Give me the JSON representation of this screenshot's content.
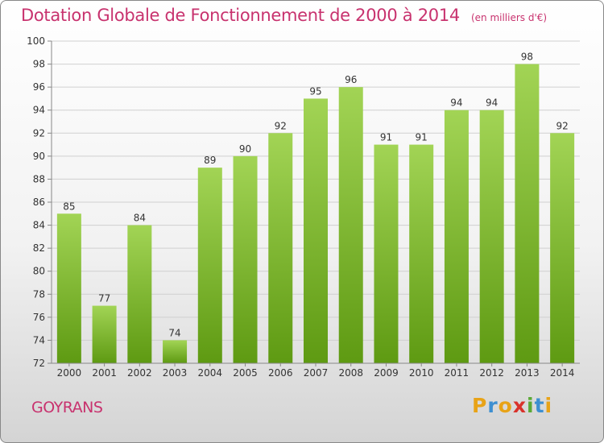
{
  "header": {
    "title": "Dotation Globale de Fonctionnement de 2000 à 2014",
    "unit": "(en milliers d'€)"
  },
  "footer": {
    "commune": "GOYRANS",
    "logo": "Proxiti"
  },
  "colors": {
    "title": "#c8326e",
    "bar_light": "#9fd24c",
    "bar_dark": "#5e9a12",
    "logo_orange": "#e8a317",
    "logo_blue": "#3d8fd1",
    "logo_red": "#d9322b",
    "logo_green": "#5aa935"
  },
  "chart_data": {
    "type": "bar",
    "categories": [
      "2000",
      "2001",
      "2002",
      "2003",
      "2004",
      "2005",
      "2006",
      "2007",
      "2008",
      "2009",
      "2010",
      "2011",
      "2012",
      "2013",
      "2014"
    ],
    "values": [
      85,
      77,
      84,
      74,
      89,
      90,
      92,
      95,
      96,
      91,
      91,
      94,
      94,
      98,
      92
    ],
    "ylim": [
      72,
      100
    ],
    "yticks": [
      72,
      74,
      76,
      78,
      80,
      82,
      84,
      86,
      88,
      90,
      92,
      94,
      96,
      98,
      100
    ],
    "grid": true,
    "legend": "none"
  }
}
